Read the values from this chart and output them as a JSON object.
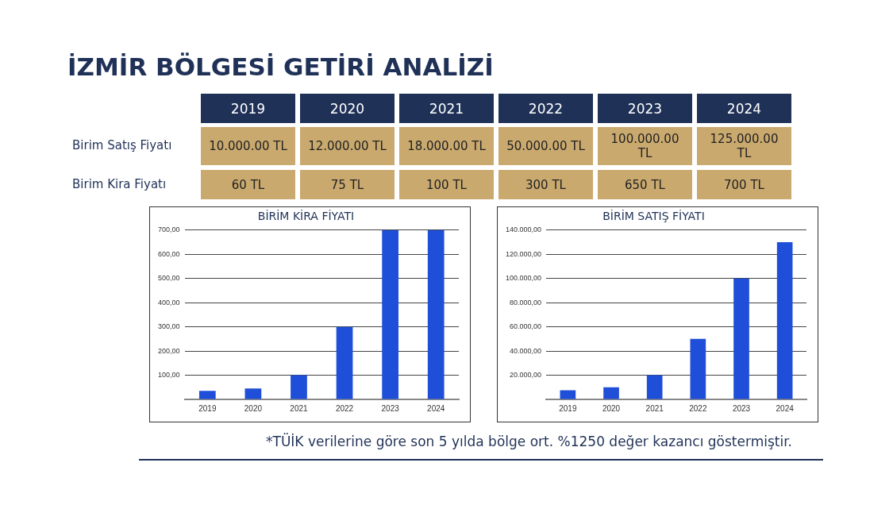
{
  "chart_data": [
    {
      "type": "heatmap",
      "title": "İZMİR BÖLGESİ GETİRİ ANALİZİ",
      "categories": [
        "2019",
        "2020",
        "2021",
        "2022",
        "2023",
        "2024"
      ],
      "y_categories": [
        "Birim Satış Fiyatı",
        "Birim Kira Fiyatı"
      ],
      "cells": [
        [
          null,
          null,
          null,
          null,
          null,
          null
        ],
        [
          null,
          null,
          null,
          null,
          null,
          null
        ]
      ],
      "cell_labels": [
        [
          "10.000.00 TL",
          "12.000.00 TL",
          "18.000.00 TL",
          "50.000.00 TL",
          "100.000.00 TL",
          "125.000.00 TL"
        ],
        [
          "60 TL",
          "75 TL",
          "100 TL",
          "300 TL",
          "650 TL",
          "700 TL"
        ]
      ]
    },
    {
      "type": "bar",
      "title": "BİRİM KİRA FİYATI",
      "categories": [
        "2019",
        "2020",
        "2021",
        "2022",
        "2023",
        "2024"
      ],
      "series": [
        {
          "color": "#1f4fd8",
          "values": [
            35,
            45,
            100,
            300,
            700,
            700
          ]
        }
      ],
      "ylim": [
        0,
        700
      ],
      "yticks": [
        {
          "value": 0,
          "label": null
        },
        {
          "value": 100,
          "label": "100,00"
        },
        {
          "value": 200,
          "label": "200,00"
        },
        {
          "value": 300,
          "label": "300,00"
        },
        {
          "value": 400,
          "label": "400,00"
        },
        {
          "value": 500,
          "label": "500,00"
        },
        {
          "value": 600,
          "label": "600,00"
        },
        {
          "value": 700,
          "label": "700,00"
        }
      ],
      "grid": "y"
    },
    {
      "type": "bar",
      "title": "BİRİM SATIŞ FİYATI",
      "categories": [
        "2019",
        "2020",
        "2021",
        "2022",
        "2023",
        "2024"
      ],
      "series": [
        {
          "color": "#1f4fd8",
          "values": [
            7500,
            10000,
            20000,
            50000,
            100000,
            130000
          ]
        }
      ],
      "ylim": [
        0,
        140000
      ],
      "yticks": [
        {
          "value": 0,
          "label": null
        },
        {
          "value": 20000,
          "label": "20.000,00"
        },
        {
          "value": 40000,
          "label": "40.000,00"
        },
        {
          "value": 60000,
          "label": "60.000,00"
        },
        {
          "value": 80000,
          "label": "80.000,00"
        },
        {
          "value": 100000,
          "label": "100.000,00"
        },
        {
          "value": 120000,
          "label": "120.000,00"
        },
        {
          "value": 140000,
          "label": "140.000,00"
        }
      ],
      "grid": "y",
      "annotations": [
        "*TÜİK verilerine göre son 5 yılda bölge ort. %1250 değer kazancı göstermiştir."
      ]
    }
  ]
}
